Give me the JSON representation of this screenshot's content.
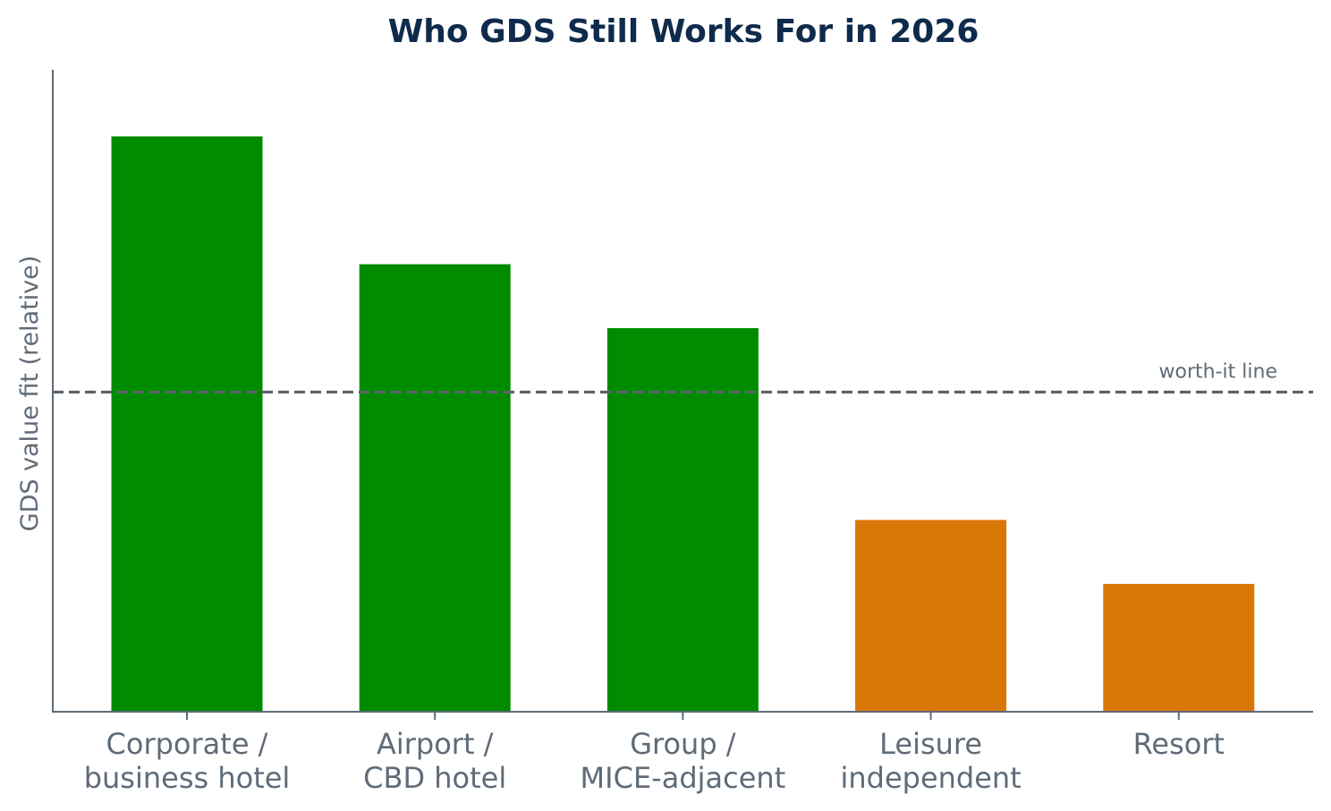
{
  "chart_data": {
    "type": "bar",
    "title": "Who GDS Still Works For in 2026",
    "xlabel": "",
    "ylabel": "GDS value fit (relative)",
    "ylim": [
      0,
      10
    ],
    "y_ticks_shown": false,
    "grid": false,
    "categories": [
      [
        "Corporate /",
        "business hotel"
      ],
      [
        "Airport /",
        "CBD hotel"
      ],
      [
        "Group /",
        "MICE-adjacent"
      ],
      [
        "Leisure",
        "independent"
      ],
      [
        "Resort"
      ]
    ],
    "values": [
      9,
      7,
      6,
      3,
      2
    ],
    "bar_colors": [
      "#008b00",
      "#008b00",
      "#008b00",
      "#d97706",
      "#d97706"
    ],
    "reference_line": {
      "value": 5,
      "label": "worth-it line",
      "style": "dashed",
      "color": "#5f6368"
    }
  },
  "colors": {
    "title": "#0f2b4c",
    "axis": "#5f6b78",
    "text": "#5f6b78",
    "above_line": "#008b00",
    "below_line": "#d97706"
  }
}
